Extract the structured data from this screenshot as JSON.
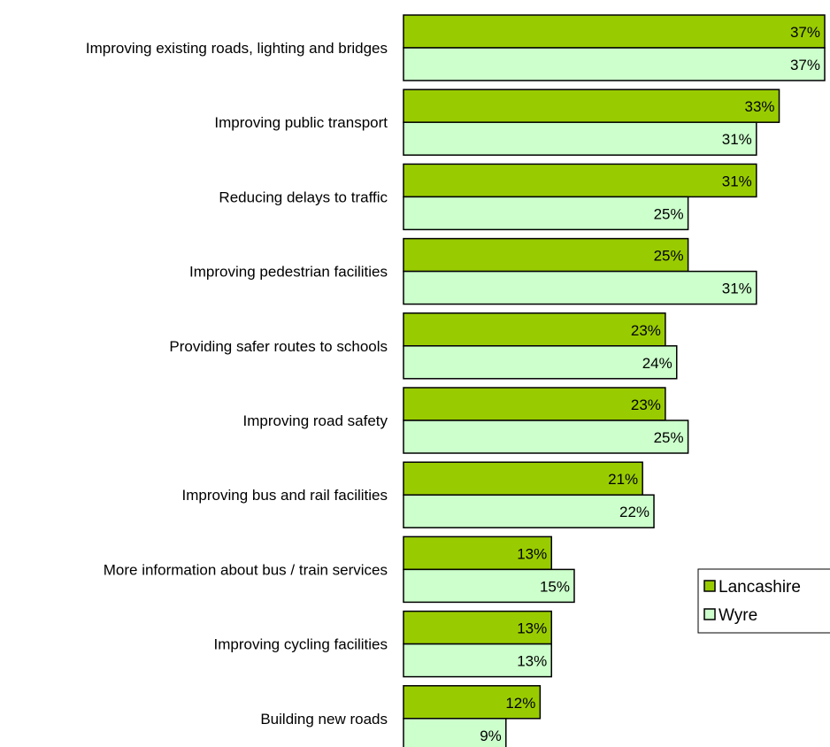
{
  "chart_data": {
    "type": "bar",
    "orientation": "horizontal",
    "categories": [
      "Improving existing roads, lighting and bridges",
      "Improving public transport",
      "Reducing delays to traffic",
      "Improving pedestrian facilities",
      "Providing safer routes to schools",
      "Improving road safety",
      "Improving bus and rail facilities",
      "More information about bus / train services",
      "Improving cycling facilities",
      "Building new roads"
    ],
    "series": [
      {
        "name": "Lancashire",
        "color": "#99cc00",
        "values": [
          37,
          33,
          31,
          25,
          23,
          23,
          21,
          13,
          13,
          12
        ],
        "labels": [
          "37%",
          "33%",
          "31%",
          "25%",
          "23%",
          "23%",
          "21%",
          "13%",
          "13%",
          "12%"
        ]
      },
      {
        "name": "Wyre",
        "color": "#ccffcc",
        "values": [
          37,
          31,
          25,
          31,
          24,
          25,
          22,
          15,
          13,
          9
        ],
        "labels": [
          "37%",
          "31%",
          "25%",
          "31%",
          "24%",
          "25%",
          "22%",
          "15%",
          "13%",
          "9%"
        ]
      }
    ],
    "xlim": [
      0,
      37
    ],
    "grid": false,
    "legend": "right"
  }
}
